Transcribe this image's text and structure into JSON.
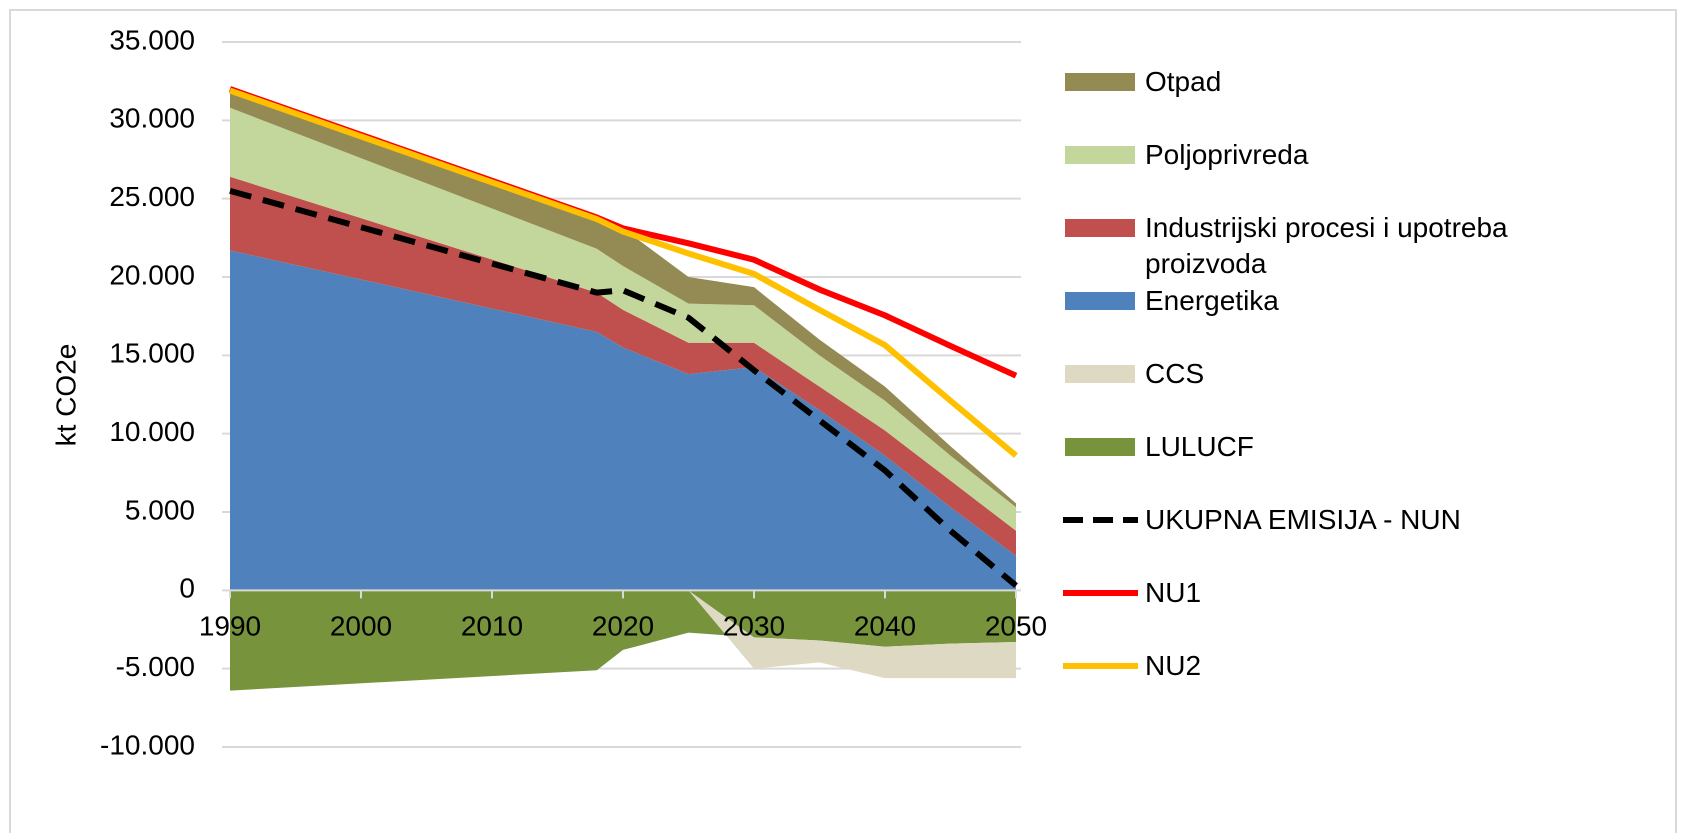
{
  "chart_data": {
    "type": "stacked-area-line",
    "y_label": "kt CO2e",
    "x": [
      1990,
      2018,
      2020,
      2025,
      2030,
      2035,
      2040,
      2045,
      2050
    ],
    "xlim": [
      1990,
      2050
    ],
    "xticks": [
      1990,
      2000,
      2010,
      2020,
      2030,
      2040,
      2050
    ],
    "ylim": [
      -10000,
      35000
    ],
    "yticks": [
      {
        "value": -10000,
        "label": "-10.000"
      },
      {
        "value": -5000,
        "label": "-5.000"
      },
      0,
      {
        "value": 5000,
        "label": "5.000"
      },
      {
        "value": 10000,
        "label": "10.000"
      },
      {
        "value": 15000,
        "label": "15.000"
      },
      {
        "value": 20000,
        "label": "20.000"
      },
      {
        "value": 25000,
        "label": "25.000"
      },
      {
        "value": 30000,
        "label": "30.000"
      },
      {
        "value": 35000,
        "label": "35.000"
      }
    ],
    "grid": true,
    "series": [
      {
        "name": "Otpad",
        "kind": "area",
        "color": "#948a54",
        "values": [
          1100,
          1950,
          2400,
          1700,
          1150,
          1000,
          900,
          600,
          250
        ]
      },
      {
        "name": "Poljoprivreda",
        "kind": "area",
        "color": "#c3d69b",
        "values": [
          4400,
          2800,
          2800,
          2500,
          2400,
          2000,
          1900,
          1600,
          1500
        ]
      },
      {
        "name": "Industrijski procesi i upotreba proizvoda",
        "kind": "area",
        "color": "#c0504d",
        "values": [
          4700,
          2500,
          2400,
          2000,
          1550,
          1500,
          1600,
          1700,
          1600
        ]
      },
      {
        "name": "Energetika",
        "kind": "area",
        "color": "#4f81bd",
        "values": [
          21700,
          16500,
          15500,
          13800,
          14250,
          11500,
          8600,
          5300,
          2200
        ]
      },
      {
        "name": "CCS",
        "kind": "area",
        "color": "#ddd9c3",
        "values": [
          0,
          0,
          0,
          0,
          -2000,
          -1400,
          -2000,
          -2200,
          -2300
        ]
      },
      {
        "name": "LULUCF",
        "kind": "area",
        "color": "#77933c",
        "values": [
          -6400,
          -5100,
          -3800,
          -2700,
          -3000,
          -3200,
          -3600,
          -3400,
          -3300
        ]
      },
      {
        "name": "UKUPNA EMISIJA - NUN",
        "kind": "line",
        "dash": true,
        "color": "#000000",
        "values": [
          25500,
          19000,
          19150,
          17400,
          14050,
          10850,
          7650,
          3800,
          300
        ]
      },
      {
        "name": "NU1",
        "kind": "line",
        "dash": false,
        "color": "#ff0000",
        "values": [
          32000,
          23800,
          23100,
          22150,
          21100,
          19200,
          17550,
          15600,
          13700
        ]
      },
      {
        "name": "NU2",
        "kind": "line",
        "dash": false,
        "color": "#ffc000",
        "values": [
          31900,
          23700,
          22900,
          21500,
          20200,
          17900,
          15650,
          12100,
          8600
        ]
      }
    ]
  }
}
